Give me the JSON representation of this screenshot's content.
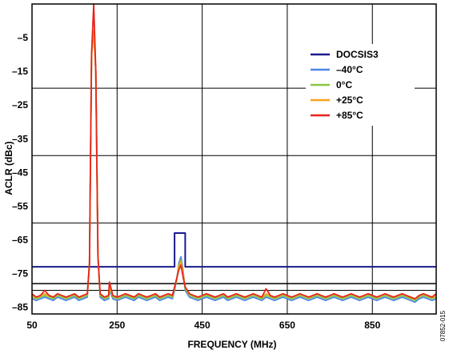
{
  "chart_data": {
    "type": "line",
    "xlabel": "FREQUENCY (MHz)",
    "ylabel": "ACLR (dBc)",
    "xlim": [
      50,
      1000
    ],
    "ylim": [
      -87,
      5
    ],
    "x_ticks": [
      50,
      250,
      450,
      650,
      850
    ],
    "x_tick_labels": [
      "50",
      "250",
      "450",
      "650",
      "850"
    ],
    "y_ticks": [
      -5,
      -15,
      -25,
      -35,
      -45,
      -55,
      -65,
      -75,
      -85
    ],
    "y_tick_labels": [
      "–5",
      "–15",
      "–25",
      "–35",
      "–45",
      "–55",
      "–65",
      "–75",
      "–85"
    ],
    "grid": true,
    "legend_position": "top-right",
    "figure_id": "07852-015",
    "series": [
      {
        "name": "DOCSIS3",
        "color": "#1a1a8c",
        "x": [
          50,
          385,
          385,
          410,
          410,
          1000
        ],
        "y": [
          -73,
          -73,
          -63,
          -63,
          -73,
          -73
        ]
      },
      {
        "name": "–40°C",
        "color": "#4f86e6",
        "x": [
          50,
          60,
          70,
          80,
          90,
          100,
          110,
          120,
          130,
          140,
          150,
          160,
          170,
          180,
          185,
          190,
          195,
          200,
          205,
          210,
          220,
          230,
          232,
          240,
          250,
          260,
          270,
          280,
          290,
          300,
          310,
          320,
          330,
          340,
          350,
          360,
          370,
          380,
          385,
          390,
          395,
          400,
          405,
          410,
          420,
          430,
          440,
          450,
          460,
          470,
          480,
          490,
          500,
          510,
          520,
          530,
          540,
          550,
          560,
          570,
          580,
          590,
          600,
          610,
          620,
          630,
          640,
          650,
          660,
          670,
          680,
          690,
          700,
          710,
          720,
          730,
          740,
          750,
          760,
          770,
          780,
          790,
          800,
          810,
          820,
          830,
          840,
          850,
          860,
          870,
          880,
          890,
          900,
          910,
          920,
          930,
          940,
          950,
          960,
          970,
          980,
          990,
          1000
        ],
        "y": [
          -82.5,
          -83,
          -82.5,
          -82,
          -82.5,
          -83,
          -82,
          -82.5,
          -83,
          -82.5,
          -82,
          -83,
          -82.5,
          -82,
          -72,
          -10,
          -3,
          -15,
          -70,
          -82,
          -83,
          -82.5,
          -80,
          -82.5,
          -83,
          -82.5,
          -82,
          -82.5,
          -83,
          -82,
          -82.5,
          -83,
          -82.5,
          -82,
          -83,
          -82.5,
          -82,
          -82.5,
          -80,
          -77,
          -72,
          -70,
          -74,
          -80,
          -82,
          -82.5,
          -83,
          -82.5,
          -82,
          -82.5,
          -83,
          -82.5,
          -82,
          -83,
          -82.5,
          -82,
          -82.5,
          -83,
          -82.5,
          -82,
          -82.5,
          -83,
          -82,
          -82.5,
          -83,
          -82.5,
          -82,
          -82.5,
          -83,
          -82.5,
          -82,
          -82.5,
          -83,
          -82.5,
          -82,
          -82.5,
          -83,
          -82.5,
          -82,
          -82.5,
          -83,
          -82.5,
          -82,
          -82.5,
          -83,
          -82.5,
          -82,
          -82.5,
          -83,
          -82.5,
          -82,
          -82.5,
          -83,
          -82.5,
          -82,
          -82.5,
          -83,
          -83.5,
          -82.5,
          -82,
          -82.5,
          -83,
          -82.5
        ]
      },
      {
        "name": "0°C",
        "color": "#8cc63f",
        "x": [
          50,
          60,
          70,
          80,
          90,
          100,
          110,
          120,
          130,
          140,
          150,
          160,
          170,
          180,
          185,
          190,
          195,
          200,
          205,
          210,
          220,
          230,
          232,
          240,
          250,
          260,
          270,
          280,
          290,
          300,
          310,
          320,
          330,
          340,
          350,
          360,
          370,
          380,
          385,
          390,
          395,
          400,
          405,
          410,
          420,
          430,
          440,
          450,
          460,
          470,
          480,
          490,
          500,
          510,
          520,
          530,
          540,
          550,
          560,
          570,
          580,
          590,
          600,
          610,
          620,
          630,
          640,
          650,
          660,
          670,
          680,
          690,
          700,
          710,
          720,
          730,
          740,
          750,
          760,
          770,
          780,
          790,
          800,
          810,
          820,
          830,
          840,
          850,
          860,
          870,
          880,
          890,
          900,
          910,
          920,
          930,
          940,
          950,
          960,
          970,
          980,
          990,
          1000
        ],
        "y": [
          -82,
          -82.5,
          -82,
          -81.5,
          -82,
          -82.5,
          -81.5,
          -82,
          -82.5,
          -82,
          -81.5,
          -82.5,
          -82,
          -81.5,
          -72,
          -10,
          -3,
          -15,
          -70,
          -81.5,
          -82.5,
          -82,
          -79.5,
          -82,
          -82.5,
          -82,
          -81.5,
          -82,
          -82.5,
          -81.5,
          -82,
          -82.5,
          -82,
          -81.5,
          -82.5,
          -82,
          -81.5,
          -82,
          -79.5,
          -77,
          -72.5,
          -71,
          -74.5,
          -79.5,
          -81.5,
          -82,
          -82.5,
          -82,
          -81.5,
          -82,
          -82.5,
          -82,
          -81.5,
          -82.5,
          -82,
          -81.5,
          -82,
          -82.5,
          -82,
          -81.5,
          -82,
          -82.5,
          -81.5,
          -82,
          -82.5,
          -82,
          -81.5,
          -82,
          -82.5,
          -82,
          -81.5,
          -82,
          -82.5,
          -82,
          -81.5,
          -82,
          -82.5,
          -82,
          -81.5,
          -82,
          -82.5,
          -82,
          -81.5,
          -82,
          -82.5,
          -82,
          -81.5,
          -82,
          -82.5,
          -82,
          -81.5,
          -82,
          -82.5,
          -82,
          -81.5,
          -82,
          -82.5,
          -83,
          -82,
          -81.5,
          -82,
          -82.5,
          -82
        ]
      },
      {
        "name": "+25°C",
        "color": "#f7a21b",
        "x": [
          50,
          60,
          70,
          80,
          90,
          100,
          110,
          120,
          130,
          140,
          150,
          160,
          170,
          180,
          185,
          190,
          195,
          200,
          205,
          210,
          220,
          230,
          232,
          240,
          250,
          260,
          270,
          280,
          290,
          300,
          310,
          320,
          330,
          340,
          350,
          360,
          370,
          380,
          385,
          390,
          395,
          400,
          405,
          410,
          420,
          430,
          440,
          450,
          460,
          470,
          480,
          490,
          500,
          510,
          520,
          530,
          540,
          550,
          560,
          570,
          580,
          590,
          600,
          610,
          620,
          630,
          640,
          650,
          660,
          670,
          680,
          690,
          700,
          710,
          720,
          730,
          740,
          750,
          760,
          770,
          780,
          790,
          800,
          810,
          820,
          830,
          840,
          850,
          860,
          870,
          880,
          890,
          900,
          910,
          920,
          930,
          940,
          950,
          960,
          970,
          980,
          990,
          1000
        ],
        "y": [
          -81.5,
          -82,
          -81.5,
          -81,
          -81.5,
          -82,
          -81,
          -81.5,
          -82,
          -81.5,
          -81,
          -82,
          -81.5,
          -81,
          -72,
          -10,
          -3,
          -15,
          -70,
          -81,
          -82,
          -81.5,
          -79,
          -81.5,
          -82,
          -81.5,
          -81,
          -81.5,
          -82,
          -81,
          -81.5,
          -82,
          -81.5,
          -81,
          -82,
          -81.5,
          -81,
          -81.5,
          -79,
          -77,
          -73,
          -71.5,
          -75,
          -79,
          -81,
          -81.5,
          -82,
          -81.5,
          -81,
          -81.5,
          -82,
          -81.5,
          -81,
          -82,
          -81.5,
          -81,
          -81.5,
          -82,
          -81.5,
          -81,
          -81.5,
          -82,
          -81,
          -81.5,
          -82,
          -81.5,
          -81,
          -81.5,
          -82,
          -81.5,
          -81,
          -81.5,
          -82,
          -81.5,
          -81,
          -81.5,
          -82,
          -81.5,
          -81,
          -81.5,
          -82,
          -81.5,
          -81,
          -81.5,
          -82,
          -81.5,
          -81,
          -81.5,
          -82,
          -81.5,
          -81,
          -81.5,
          -82,
          -81.5,
          -81,
          -81.5,
          -82,
          -82.5,
          -81.5,
          -81,
          -81.5,
          -82,
          -81.5
        ]
      },
      {
        "name": "+85°C",
        "color": "#e8231a",
        "x": [
          50,
          60,
          70,
          80,
          90,
          100,
          110,
          120,
          130,
          140,
          150,
          160,
          170,
          180,
          185,
          190,
          195,
          200,
          205,
          210,
          220,
          230,
          232,
          240,
          250,
          260,
          270,
          280,
          290,
          300,
          310,
          320,
          330,
          340,
          350,
          360,
          370,
          380,
          385,
          390,
          395,
          400,
          405,
          410,
          420,
          430,
          440,
          450,
          460,
          470,
          480,
          490,
          500,
          510,
          520,
          530,
          540,
          550,
          560,
          570,
          580,
          590,
          600,
          610,
          620,
          630,
          640,
          650,
          660,
          670,
          680,
          690,
          700,
          710,
          720,
          730,
          740,
          750,
          760,
          770,
          780,
          790,
          800,
          810,
          820,
          830,
          840,
          850,
          860,
          870,
          880,
          890,
          900,
          910,
          920,
          930,
          940,
          950,
          960,
          970,
          980,
          990,
          1000
        ],
        "y": [
          -81,
          -82,
          -81.5,
          -80,
          -81.5,
          -82,
          -81,
          -81.5,
          -82,
          -81.5,
          -81,
          -82,
          -81.5,
          -81,
          -72,
          -10,
          5,
          -15,
          -70,
          -81,
          -82,
          -81.5,
          -77.5,
          -81.5,
          -82,
          -81.5,
          -81,
          -81.5,
          -82,
          -81,
          -81.5,
          -82,
          -81.5,
          -81,
          -82,
          -81.5,
          -81,
          -81.5,
          -79,
          -76.5,
          -74,
          -72.5,
          -76,
          -79,
          -81,
          -81.5,
          -82,
          -81.5,
          -81,
          -81.5,
          -82,
          -81.5,
          -81,
          -82,
          -81.5,
          -81,
          -81.5,
          -82,
          -81.5,
          -81,
          -81.5,
          -82,
          -79.5,
          -81.5,
          -82,
          -81.5,
          -81,
          -81.5,
          -82,
          -81.5,
          -81,
          -81.5,
          -82,
          -81.5,
          -81,
          -81.5,
          -82,
          -81.5,
          -81,
          -81.5,
          -82,
          -81.5,
          -81,
          -81.5,
          -82,
          -81.5,
          -81,
          -81.5,
          -82,
          -81.5,
          -81,
          -81.5,
          -82,
          -81.5,
          -81,
          -81.5,
          -82,
          -82.5,
          -81.5,
          -81,
          -81.5,
          -82,
          -81
        ]
      }
    ]
  }
}
